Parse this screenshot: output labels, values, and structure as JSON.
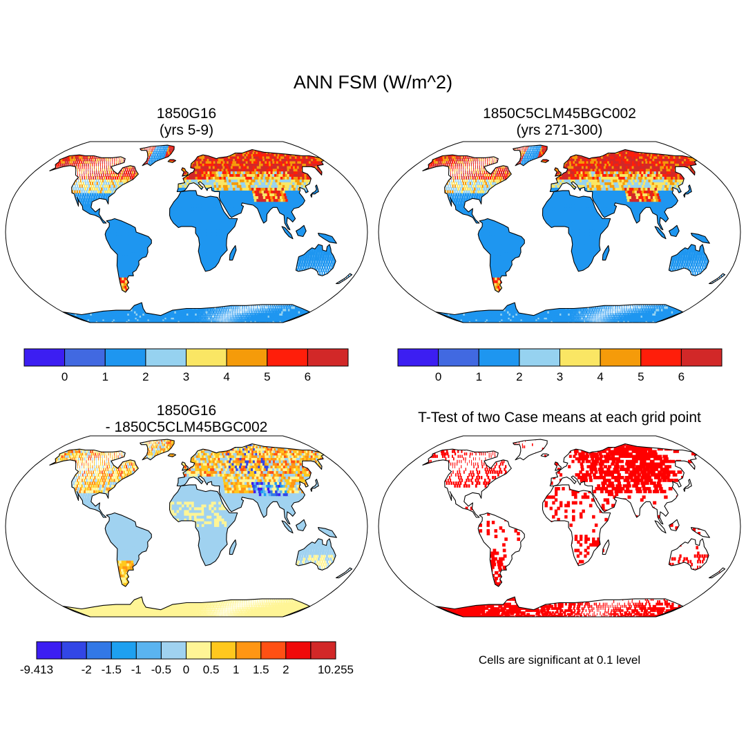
{
  "main_title": "ANN FSM (W/m^2)",
  "panels": [
    {
      "id": "p1",
      "title_line1": "1850G16",
      "title_line2": "(yrs 5-9)",
      "kind": "case1"
    },
    {
      "id": "p2",
      "title_line1": "1850C5CLM45BGC002",
      "title_line2": "(yrs 271-300)",
      "kind": "case2"
    },
    {
      "id": "p3",
      "title_line1": "1850G16",
      "title_line2": "- 1850C5CLM45BGC002",
      "kind": "diff"
    },
    {
      "id": "p4",
      "title_line1": "T-Test of two Case means at each grid point",
      "title_line2": "",
      "kind": "ttest"
    }
  ],
  "significance_note": "Cells are significant at 0.1 level",
  "colors": {
    "ocean": "#ffffff",
    "coast": "#000000",
    "ttest_sig": "#ff0000"
  },
  "chart_data": [
    {
      "type": "heatmap",
      "title": "1850G16 (yrs 5-9)",
      "colorbar": {
        "tick_labels": [
          "0",
          "1",
          "2",
          "3",
          "4",
          "5",
          "6"
        ],
        "colors": [
          "#3c1ef2",
          "#4169e1",
          "#1e96f0",
          "#96d2f0",
          "#fae664",
          "#f59b0a",
          "#ff1e0a",
          "#d22828"
        ]
      }
    },
    {
      "type": "heatmap",
      "title": "1850C5CLM45BGC002 (yrs 271-300)",
      "colorbar": {
        "tick_labels": [
          "0",
          "1",
          "2",
          "3",
          "4",
          "5",
          "6"
        ],
        "colors": [
          "#3c1ef2",
          "#4169e1",
          "#1e96f0",
          "#96d2f0",
          "#fae664",
          "#f59b0a",
          "#ff1e0a",
          "#d22828"
        ]
      }
    },
    {
      "type": "heatmap",
      "title": "1850G16 - 1850C5CLM45BGC002",
      "colorbar": {
        "tick_labels": [
          "-9.413",
          "-2",
          "-1.5",
          "-1",
          "-0.5",
          "0",
          "0.5",
          "1",
          "1.5",
          "2",
          "10.255"
        ],
        "colors": [
          "#3c1ef2",
          "#3246e6",
          "#3278e6",
          "#1ea0f0",
          "#5ab4f0",
          "#a0d2f0",
          "#fff596",
          "#ffc81e",
          "#ff9614",
          "#ff5014",
          "#f00a0a",
          "#d22828"
        ]
      }
    },
    {
      "type": "heatmap",
      "title": "T-Test of two Case means at each grid point",
      "colorbar": null
    }
  ]
}
